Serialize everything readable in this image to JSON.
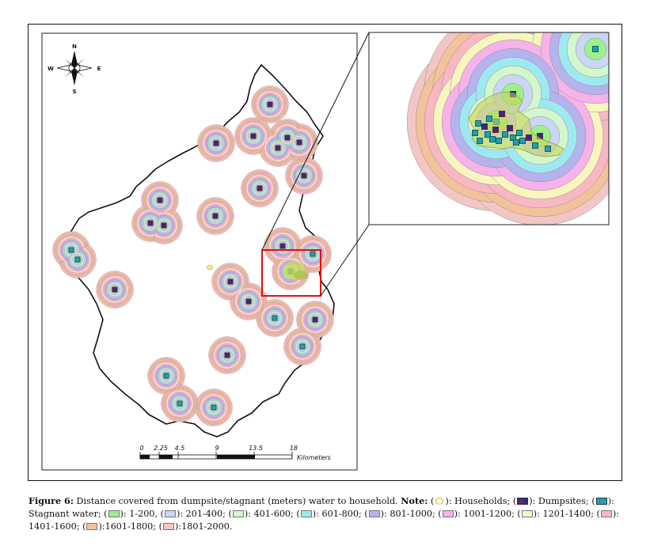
{
  "map": {
    "compass": {
      "n": "N",
      "s": "S",
      "e": "E",
      "w": "W"
    },
    "scale": {
      "ticks": [
        "0",
        "2.25",
        "4.5",
        "9",
        "13.5",
        "18"
      ],
      "unit": "Kilometers"
    }
  },
  "caption": {
    "label": "Figure 6:",
    "text": " Distance covered from dumpsite/stagnant (meters) water to household. ",
    "note_label": "Note:",
    "legend": [
      {
        "pre": "(",
        "swatch": "household",
        "post": "): Households;"
      },
      {
        "pre": "(",
        "swatch": "dumpsite",
        "post": "): Dumpsites;"
      },
      {
        "pre": "(",
        "swatch": "stagnant",
        "post": "): Stagnant water;"
      },
      {
        "pre": "(",
        "color": "#9ef08a",
        "post": "): 1-200,"
      },
      {
        "pre": "(",
        "color": "#c9d6f5",
        "post": "): 201-400;"
      },
      {
        "pre": "(",
        "color": "#d2f7cc",
        "post": "): 401-600;"
      },
      {
        "pre": "(",
        "color": "#9de9f2",
        "post": "): 601-800;"
      },
      {
        "pre": "(",
        "color": "#b5b3ee",
        "post": "): 801-1000;"
      },
      {
        "pre": "(",
        "color": "#f5b3e9",
        "post": "): 1001-1200;"
      },
      {
        "pre": "(",
        "color": "#f8f5bf",
        "post": "): 1201-1400;"
      },
      {
        "pre": "(",
        "color": "#f7b8c4",
        "post": "): 1401-1600;"
      },
      {
        "pre": "(",
        "color": "#f2c39b",
        "post": "):1601-1800;"
      },
      {
        "pre": "(",
        "color": "#f3c6c6",
        "post": "):1801-2000."
      }
    ]
  }
}
